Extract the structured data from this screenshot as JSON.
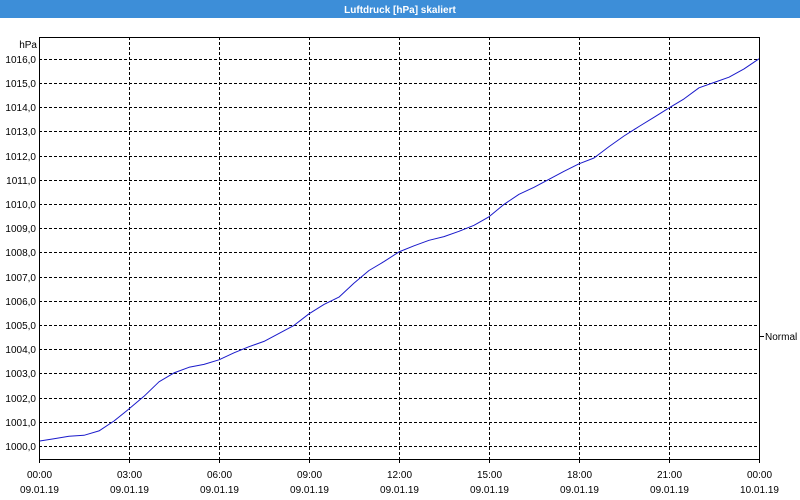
{
  "window": {
    "title_bar_color": "#3d8ed8",
    "title_text_color": "#ffffff",
    "background_color": "#ffffff"
  },
  "chart_data": {
    "type": "line",
    "title": "Luftdruck [hPa] skaliert",
    "xlabel": "",
    "ylabel": "hPa",
    "xlim": [
      "09.01.19 00:00",
      "10.01.19 00:00"
    ],
    "ylim": [
      999.46,
      1016.9
    ],
    "grid": true,
    "grid_style": "dashed",
    "grid_color": "#000000",
    "legend_position": "right",
    "y_ticks": [
      {
        "value": 1000,
        "label": "1000,0"
      },
      {
        "value": 1001,
        "label": "1001,0"
      },
      {
        "value": 1002,
        "label": "1002,0"
      },
      {
        "value": 1003,
        "label": "1003,0"
      },
      {
        "value": 1004,
        "label": "1004,0"
      },
      {
        "value": 1005,
        "label": "1005,0"
      },
      {
        "value": 1006,
        "label": "1006,0"
      },
      {
        "value": 1007,
        "label": "1007,0"
      },
      {
        "value": 1008,
        "label": "1008,0"
      },
      {
        "value": 1009,
        "label": "1009,0"
      },
      {
        "value": 1010,
        "label": "1010,0"
      },
      {
        "value": 1011,
        "label": "1011,0"
      },
      {
        "value": 1012,
        "label": "1012,0"
      },
      {
        "value": 1013,
        "label": "1013,0"
      },
      {
        "value": 1014,
        "label": "1014,0"
      },
      {
        "value": 1015,
        "label": "1015,0"
      },
      {
        "value": 1016,
        "label": "1016,0"
      }
    ],
    "x_ticks": [
      {
        "time": "00:00",
        "date": "09.01.19"
      },
      {
        "time": "03:00",
        "date": "09.01.19"
      },
      {
        "time": "06:00",
        "date": "09.01.19"
      },
      {
        "time": "09:00",
        "date": "09.01.19"
      },
      {
        "time": "12:00",
        "date": "09.01.19"
      },
      {
        "time": "15:00",
        "date": "09.01.19"
      },
      {
        "time": "18:00",
        "date": "09.01.19"
      },
      {
        "time": "21:00",
        "date": "09.01.19"
      },
      {
        "time": "00:00",
        "date": "10.01.19"
      }
    ],
    "series": [
      {
        "name": "Normal",
        "color": "#1a1acb",
        "x": [
          "09.01.19 00:00",
          "09.01.19 00:30",
          "09.01.19 01:00",
          "09.01.19 01:30",
          "09.01.19 02:00",
          "09.01.19 02:30",
          "09.01.19 03:00",
          "09.01.19 03:30",
          "09.01.19 04:00",
          "09.01.19 04:30",
          "09.01.19 05:00",
          "09.01.19 05:30",
          "09.01.19 06:00",
          "09.01.19 06:30",
          "09.01.19 07:00",
          "09.01.19 07:30",
          "09.01.19 08:00",
          "09.01.19 08:30",
          "09.01.19 09:00",
          "09.01.19 09:30",
          "09.01.19 10:00",
          "09.01.19 10:30",
          "09.01.19 11:00",
          "09.01.19 11:30",
          "09.01.19 12:00",
          "09.01.19 12:30",
          "09.01.19 13:00",
          "09.01.19 13:30",
          "09.01.19 14:00",
          "09.01.19 14:30",
          "09.01.19 15:00",
          "09.01.19 15:30",
          "09.01.19 16:00",
          "09.01.19 16:30",
          "09.01.19 17:00",
          "09.01.19 17:30",
          "09.01.19 18:00",
          "09.01.19 18:30",
          "09.01.19 19:00",
          "09.01.19 19:30",
          "09.01.19 20:00",
          "09.01.19 20:30",
          "09.01.19 21:00",
          "09.01.19 21:30",
          "09.01.19 22:00",
          "09.01.19 22:30",
          "09.01.19 23:00",
          "09.01.19 23:30",
          "10.01.19 00:00"
        ],
        "y": [
          1000.2,
          1000.3,
          1000.4,
          1000.44,
          1000.62,
          1001.03,
          1001.53,
          1002.05,
          1002.65,
          1003.02,
          1003.25,
          1003.37,
          1003.56,
          1003.85,
          1004.1,
          1004.32,
          1004.65,
          1004.98,
          1005.46,
          1005.85,
          1006.15,
          1006.73,
          1007.25,
          1007.62,
          1008.02,
          1008.27,
          1008.5,
          1008.65,
          1008.87,
          1009.12,
          1009.47,
          1009.98,
          1010.4,
          1010.69,
          1011.02,
          1011.35,
          1011.66,
          1011.9,
          1012.37,
          1012.81,
          1013.2,
          1013.58,
          1013.97,
          1014.34,
          1014.8,
          1015.02,
          1015.24,
          1015.58,
          1016.0
        ]
      }
    ]
  }
}
